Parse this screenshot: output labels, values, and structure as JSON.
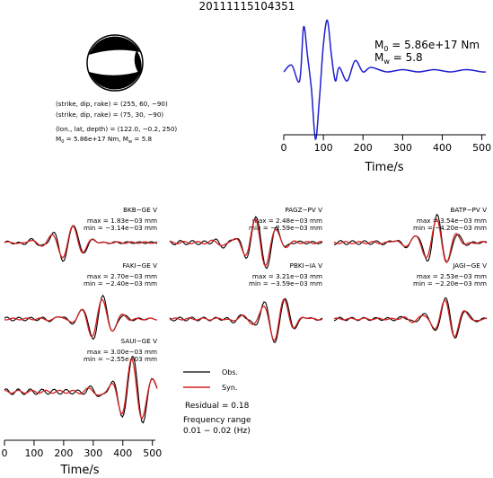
{
  "event_id": "20111115104351",
  "mechanism": {
    "line1": "(strike, dip, rake) = (255, 60, −90)",
    "line2": "(strike, dip, rake) = (75, 30, −90)",
    "line3": "(lon., lat, depth) = (122.0, −0.2, 250)",
    "line4_prefix": "M",
    "line4_sub": "0",
    "line4_rest": " = 5.86e+17 Nm, M",
    "line4_sub2": "w",
    "line4_end": " = 5.8"
  },
  "moment": {
    "m0_label": "M",
    "m0_sub": "0",
    "m0_value": " = 5.86e+17 Nm",
    "mw_label": "M",
    "mw_sub": "w",
    "mw_value": " = 5.8"
  },
  "stf": {
    "xlabel": "Time/s",
    "ticks": [
      "0",
      "100",
      "200",
      "300",
      "400",
      "500"
    ]
  },
  "legend": {
    "obs": "Obs.",
    "syn": "Syn.",
    "residual": "Residual = 0.18",
    "freq_title": "Frequency range",
    "freq_value": "0.01 − 0.02 (Hz)"
  },
  "bottom_axis": {
    "xlabel": "Time/s",
    "ticks": [
      "0",
      "100",
      "200",
      "300",
      "400",
      "500"
    ]
  },
  "colors": {
    "obs": "#000000",
    "syn": "#d42020",
    "stf": "#1f1fd0"
  },
  "chart_data": [
    {
      "type": "line",
      "name": "source-time-function",
      "xlim": [
        0,
        510
      ],
      "series": [
        {
          "x": [
            0,
            20,
            40,
            50,
            60,
            70,
            80,
            90,
            100,
            110,
            120,
            130,
            140,
            160,
            180,
            200,
            220,
            260,
            300,
            340,
            380,
            420,
            460,
            500,
            510
          ],
          "values": [
            0,
            0.15,
            -0.2,
            1.0,
            0.35,
            -0.4,
            -1.5,
            -0.6,
            0.6,
            1.15,
            0.4,
            -0.2,
            0.1,
            -0.2,
            0.25,
            0.0,
            0.1,
            0.0,
            0.05,
            0.0,
            0.05,
            0.0,
            0.05,
            0.0,
            0.0
          ]
        }
      ]
    },
    {
      "type": "line",
      "name": "waveforms",
      "xlim": [
        0,
        510
      ],
      "stations": [
        {
          "name": "BKB−GE V",
          "max": "max = 1.83e−03 mm",
          "min": "min = −3.14e−03 mm"
        },
        {
          "name": "PAGZ−PV V",
          "max": "max = 2.48e−03 mm",
          "min": "min = −2.59e−03 mm"
        },
        {
          "name": "BATP−PV V",
          "max": "max = 3.54e−03 mm",
          "min": "min = −4.20e−03 mm"
        },
        {
          "name": "FAKI−GE V",
          "max": "max = 2.70e−03 mm",
          "min": "min = −2.40e−03 mm"
        },
        {
          "name": "PBKI−IA V",
          "max": "max = 3.21e−03 mm",
          "min": "min = −3.59e−03 mm"
        },
        {
          "name": "JAGI−GE V",
          "max": "max = 2.53e−03 mm",
          "min": "min = −2.20e−03 mm"
        },
        {
          "name": "SAUI−GE V",
          "max": "max = 3.00e−03 mm",
          "min": "min = −2.55e−03 mm"
        }
      ]
    }
  ]
}
